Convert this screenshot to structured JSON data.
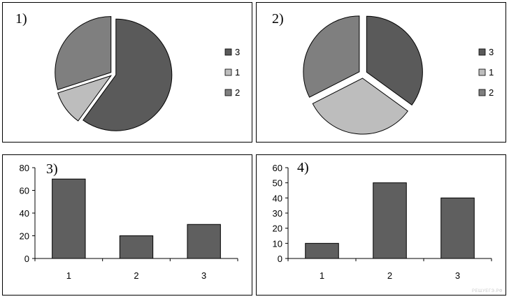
{
  "chart_data": [
    {
      "type": "pie",
      "panel_label": "1)",
      "categories": [
        "3",
        "1",
        "2"
      ],
      "values": [
        60,
        10,
        30
      ],
      "colors": [
        "#5a5a5a",
        "#bdbdbd",
        "#7f7f7f"
      ],
      "legend": "right"
    },
    {
      "type": "pie",
      "panel_label": "2)",
      "categories": [
        "3",
        "1",
        "2"
      ],
      "values": [
        35,
        32.5,
        32.5
      ],
      "colors": [
        "#5a5a5a",
        "#bdbdbd",
        "#7f7f7f"
      ],
      "legend": "right"
    },
    {
      "type": "bar",
      "panel_label": "3)",
      "categories": [
        "1",
        "2",
        "3"
      ],
      "values": [
        70,
        20,
        30
      ],
      "ylim": [
        0,
        80
      ],
      "yticks": [
        "0",
        "20",
        "40",
        "60",
        "80"
      ],
      "color": "#5f5f5f"
    },
    {
      "type": "bar",
      "panel_label": "4)",
      "categories": [
        "1",
        "2",
        "3"
      ],
      "values": [
        10,
        50,
        40
      ],
      "ylim": [
        0,
        60
      ],
      "yticks": [
        "0",
        "10",
        "20",
        "30",
        "40",
        "50",
        "60"
      ],
      "color": "#5f5f5f"
    }
  ],
  "watermark": "РЕШУЕГЭ.РФ"
}
